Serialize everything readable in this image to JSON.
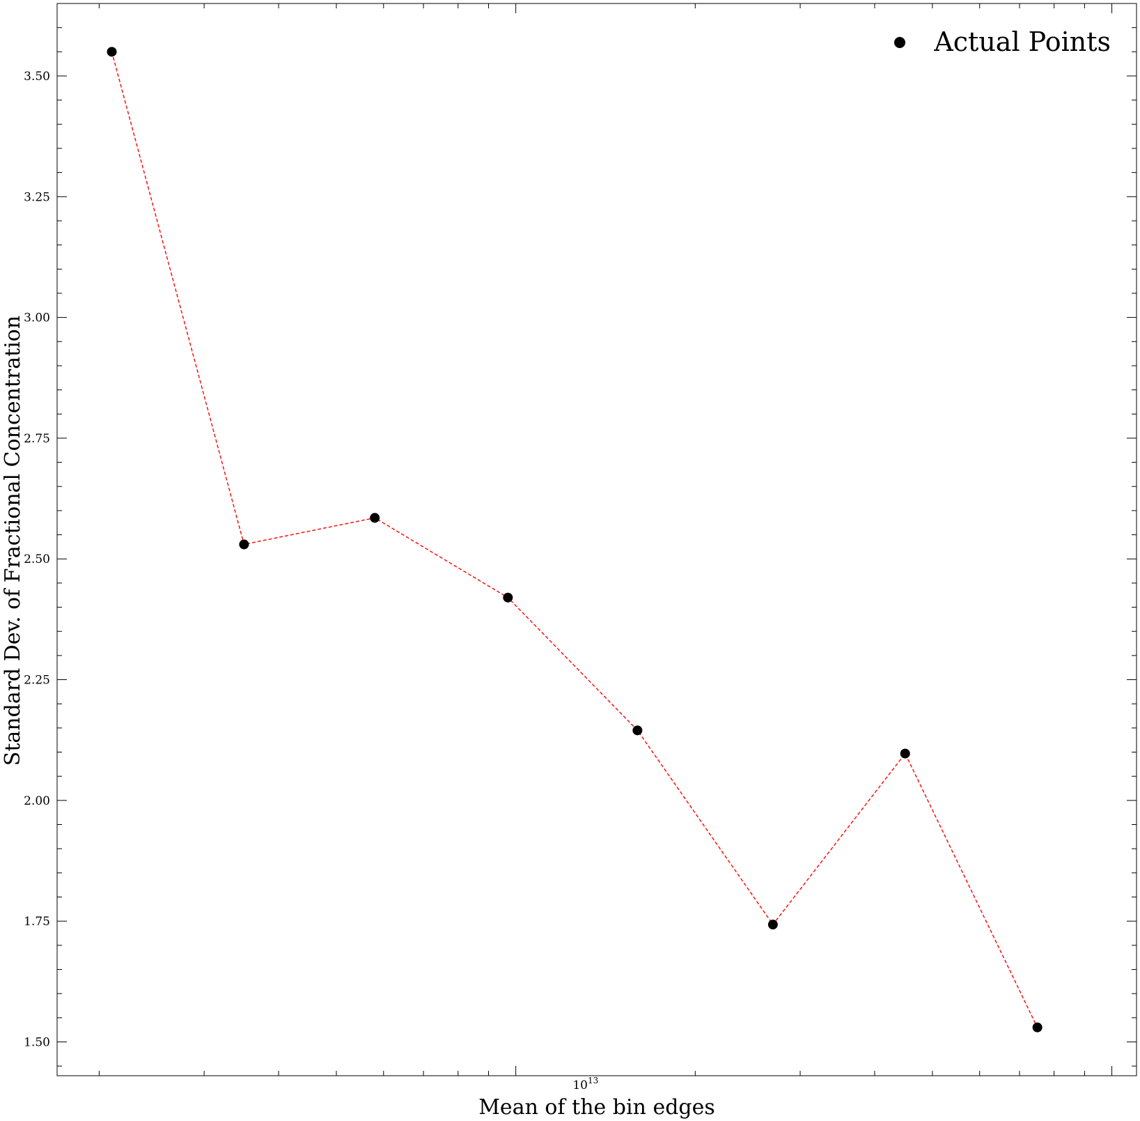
{
  "chart_data": {
    "type": "scatter",
    "xscale": "log",
    "xlabel": "Mean of the bin edges",
    "ylabel": "Standard Dev. of Fractional Concentration",
    "x_tick_label": {
      "base": "10",
      "exponent": "13"
    },
    "y_tick_labels": [
      "1.50",
      "1.75",
      "2.00",
      "2.25",
      "2.50",
      "2.75",
      "3.00",
      "3.25",
      "3.50"
    ],
    "ylim": [
      1.43,
      3.65
    ],
    "xlim": [
      1700000000000.0,
      110000000000000.0
    ],
    "legend": {
      "label": "Actual Points",
      "placement": "top-right"
    },
    "colors": {
      "points": "#000000",
      "line": "#ff0000"
    },
    "series": [
      {
        "name": "Actual Points",
        "x": [
          2100000000000.0,
          3500000000000.0,
          5800000000000.0,
          9700000000000.0,
          16000000000000.0,
          27000000000000.0,
          45000000000000.0,
          75000000000000.0
        ],
        "y": [
          3.55,
          2.53,
          2.585,
          2.42,
          2.145,
          1.743,
          2.097,
          1.53
        ]
      }
    ]
  }
}
